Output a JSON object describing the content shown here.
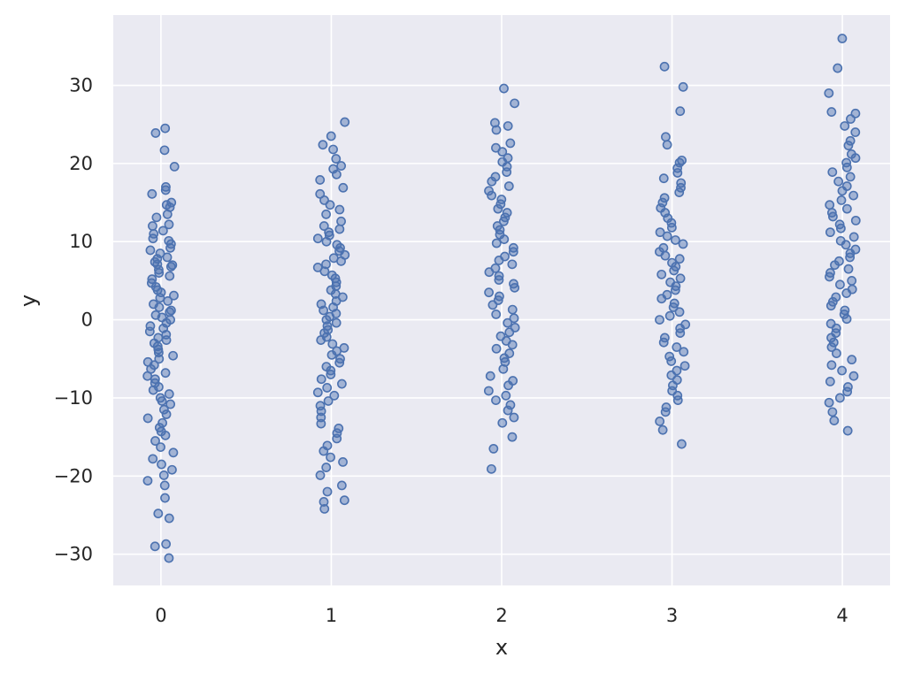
{
  "chart_data": {
    "type": "scatter",
    "title": "",
    "xlabel": "x",
    "ylabel": "y",
    "xlim": [
      -0.28,
      4.28
    ],
    "ylim": [
      -34,
      39
    ],
    "x_ticks": [
      0,
      1,
      2,
      3,
      4
    ],
    "y_ticks": [
      -30,
      -20,
      -10,
      0,
      10,
      20,
      30
    ],
    "y_tick_labels": [
      "−30",
      "−20",
      "−10",
      "0",
      "10",
      "20",
      "30"
    ],
    "grid": true,
    "jitter": 0.08,
    "colors": {
      "background": "#eaeaf2",
      "grid": "#ffffff",
      "marker": "#4c72b0"
    },
    "series": [
      {
        "x": 0,
        "y": [
          24.5,
          23.9,
          21.7,
          19.6,
          17.0,
          16.6,
          16.1,
          15.0,
          14.7,
          14.4,
          13.5,
          13.1,
          12.2,
          12.0,
          11.4,
          11.0,
          10.4,
          10.1,
          9.7,
          9.2,
          8.9,
          8.5,
          8.0,
          7.8,
          7.4,
          7.1,
          7.0,
          6.8,
          6.4,
          6.0,
          5.6,
          5.2,
          4.7,
          4.2,
          3.8,
          3.5,
          3.1,
          2.8,
          2.4,
          2.0,
          1.6,
          1.2,
          1.0,
          0.6,
          0.3,
          0.0,
          -0.4,
          -0.8,
          -1.1,
          -1.5,
          -1.9,
          -2.3,
          -2.6,
          -3.0,
          -3.4,
          -3.8,
          -4.2,
          -4.6,
          -5.0,
          -5.4,
          -5.8,
          -6.3,
          -6.8,
          -7.2,
          -7.6,
          -8.1,
          -8.6,
          -9.0,
          -9.5,
          -10.0,
          -10.4,
          -10.8,
          -11.5,
          -12.1,
          -12.6,
          -13.2,
          -13.8,
          -14.3,
          -14.8,
          -15.5,
          -16.3,
          -17.0,
          -17.8,
          -18.5,
          -19.2,
          -19.9,
          -20.6,
          -21.2,
          -22.8,
          -24.8,
          -25.4,
          -28.7,
          -29.0,
          -30.5
        ]
      },
      {
        "x": 1,
        "y": [
          25.3,
          23.5,
          22.4,
          21.8,
          20.6,
          19.7,
          19.3,
          18.6,
          17.9,
          16.9,
          16.1,
          15.3,
          14.7,
          14.1,
          13.5,
          12.6,
          12.0,
          11.6,
          11.2,
          10.8,
          10.4,
          10.0,
          9.6,
          9.2,
          8.8,
          8.3,
          7.9,
          7.5,
          7.1,
          6.7,
          6.2,
          5.7,
          5.3,
          4.8,
          4.3,
          3.8,
          3.3,
          2.9,
          2.4,
          2.0,
          1.6,
          1.2,
          0.8,
          0.4,
          0.0,
          -0.4,
          -0.8,
          -1.3,
          -1.7,
          -2.2,
          -2.6,
          -3.1,
          -3.6,
          -4.0,
          -4.5,
          -5.0,
          -5.5,
          -6.0,
          -6.5,
          -7.0,
          -7.6,
          -8.2,
          -8.7,
          -9.3,
          -9.7,
          -10.4,
          -11.0,
          -11.7,
          -12.5,
          -13.3,
          -13.9,
          -14.5,
          -15.2,
          -16.1,
          -16.8,
          -17.6,
          -18.2,
          -18.9,
          -19.9,
          -21.2,
          -22.0,
          -23.1,
          -23.3,
          -24.2
        ]
      },
      {
        "x": 2,
        "y": [
          29.6,
          27.7,
          25.2,
          24.8,
          24.3,
          22.6,
          22.0,
          21.5,
          20.7,
          20.2,
          19.6,
          18.9,
          18.3,
          17.7,
          17.1,
          16.5,
          15.9,
          15.4,
          14.8,
          14.2,
          13.7,
          13.1,
          12.6,
          12.0,
          11.5,
          10.9,
          10.3,
          9.8,
          9.2,
          8.7,
          8.1,
          7.6,
          7.1,
          6.6,
          6.1,
          5.6,
          5.1,
          4.6,
          4.1,
          3.5,
          3.0,
          2.5,
          1.9,
          1.3,
          0.7,
          0.2,
          -0.4,
          -1.0,
          -1.6,
          -2.1,
          -2.7,
          -3.2,
          -3.7,
          -4.3,
          -4.9,
          -5.4,
          -6.3,
          -7.2,
          -7.8,
          -8.4,
          -9.1,
          -9.7,
          -10.3,
          -10.9,
          -11.6,
          -12.5,
          -13.2,
          -15.0,
          -16.5,
          -19.1
        ]
      },
      {
        "x": 3,
        "y": [
          32.4,
          29.8,
          26.7,
          23.4,
          22.4,
          20.4,
          20.1,
          19.4,
          18.8,
          18.1,
          17.5,
          16.9,
          16.3,
          15.6,
          15.0,
          14.3,
          13.7,
          13.0,
          12.4,
          11.8,
          11.2,
          10.7,
          10.2,
          9.7,
          9.2,
          8.7,
          8.2,
          7.8,
          7.3,
          6.8,
          6.3,
          5.8,
          5.3,
          4.8,
          4.3,
          3.8,
          3.2,
          2.7,
          2.1,
          1.6,
          1.0,
          0.5,
          0.0,
          -0.6,
          -1.1,
          -1.7,
          -2.3,
          -2.9,
          -3.5,
          -4.1,
          -4.7,
          -5.3,
          -5.9,
          -6.5,
          -7.1,
          -7.7,
          -8.4,
          -9.1,
          -9.7,
          -10.3,
          -11.2,
          -11.8,
          -13.0,
          -14.1,
          -15.9
        ]
      },
      {
        "x": 4,
        "y": [
          36.0,
          32.2,
          29.0,
          26.6,
          26.4,
          25.7,
          24.8,
          24.0,
          22.9,
          22.3,
          21.2,
          20.7,
          20.1,
          19.5,
          18.9,
          18.3,
          17.7,
          17.1,
          16.5,
          15.9,
          15.3,
          14.7,
          14.2,
          13.7,
          13.2,
          12.7,
          12.2,
          11.7,
          11.2,
          10.6,
          10.1,
          9.6,
          9.0,
          8.5,
          8.0,
          7.5,
          7.0,
          6.5,
          6.0,
          5.5,
          5.0,
          4.5,
          3.9,
          3.4,
          2.9,
          2.3,
          1.8,
          1.2,
          0.7,
          0.1,
          -0.5,
          -1.1,
          -1.7,
          -2.3,
          -2.9,
          -3.5,
          -4.3,
          -5.1,
          -5.8,
          -6.5,
          -7.2,
          -7.9,
          -8.6,
          -9.2,
          -10.0,
          -10.6,
          -11.8,
          -12.9,
          -14.2
        ]
      }
    ]
  }
}
